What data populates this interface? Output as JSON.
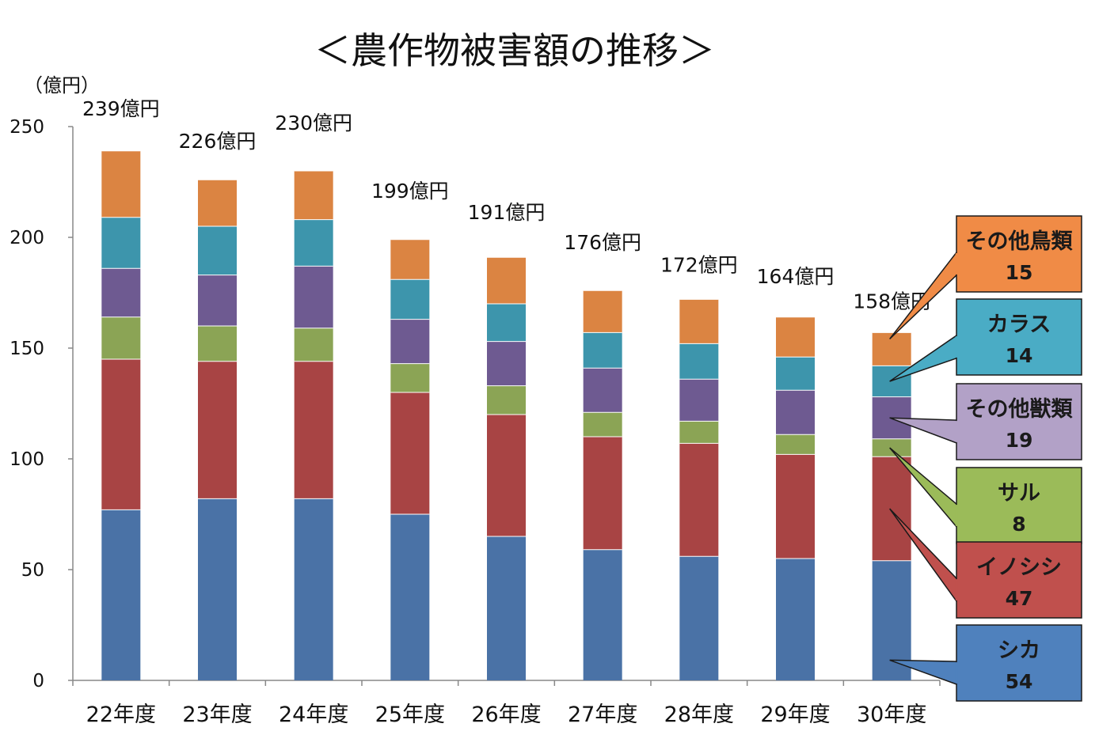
{
  "chart_data": {
    "type": "bar",
    "stacked": true,
    "title": "＜農作物被害額の推移＞",
    "ylabel": "（億円）",
    "ylim": [
      0,
      250
    ],
    "yticks": [
      "0",
      "50",
      "100",
      "150",
      "200",
      "250"
    ],
    "grid": false,
    "legend_placement": "right (callouts)",
    "categories": [
      "22年度",
      "23年度",
      "24年度",
      "25年度",
      "26年度",
      "27年度",
      "28年度",
      "29年度",
      "30年度"
    ],
    "totals": [
      "239億円",
      "226億円",
      "230億円",
      "199億円",
      "191億円",
      "176億円",
      "172億円",
      "164億円",
      "158億円"
    ],
    "series": [
      {
        "name": "シカ",
        "color": "#4a72a6",
        "values": [
          77,
          82,
          82,
          75,
          65,
          59,
          56,
          55,
          54
        ]
      },
      {
        "name": "イノシシ",
        "color": "#a84444",
        "values": [
          68,
          62,
          62,
          55,
          55,
          51,
          51,
          47,
          47
        ]
      },
      {
        "name": "サル",
        "color": "#8ba455",
        "values": [
          19,
          16,
          15,
          13,
          13,
          11,
          10,
          9,
          8
        ]
      },
      {
        "name": "その他獣類",
        "color": "#6e5a91",
        "values": [
          22,
          23,
          28,
          20,
          20,
          20,
          19,
          20,
          19
        ]
      },
      {
        "name": "カラス",
        "color": "#3d95ac",
        "values": [
          23,
          22,
          21,
          18,
          17,
          16,
          16,
          15,
          14
        ]
      },
      {
        "name": "その他鳥類",
        "color": "#db8442",
        "values": [
          30,
          21,
          22,
          18,
          21,
          19,
          20,
          18,
          15
        ]
      }
    ],
    "callouts": [
      {
        "name": "その他鳥類",
        "value": "15",
        "fill": "#f08b46"
      },
      {
        "name": "カラス",
        "value": "14",
        "fill": "#4aacc5"
      },
      {
        "name": "その他獣類",
        "value": "19",
        "fill": "#b2a1c7"
      },
      {
        "name": "サル",
        "value": "8",
        "fill": "#9bbb59"
      },
      {
        "name": "イノシシ",
        "value": "47",
        "fill": "#c0504d"
      },
      {
        "name": "シカ",
        "value": "54",
        "fill": "#4f81bd"
      }
    ]
  }
}
